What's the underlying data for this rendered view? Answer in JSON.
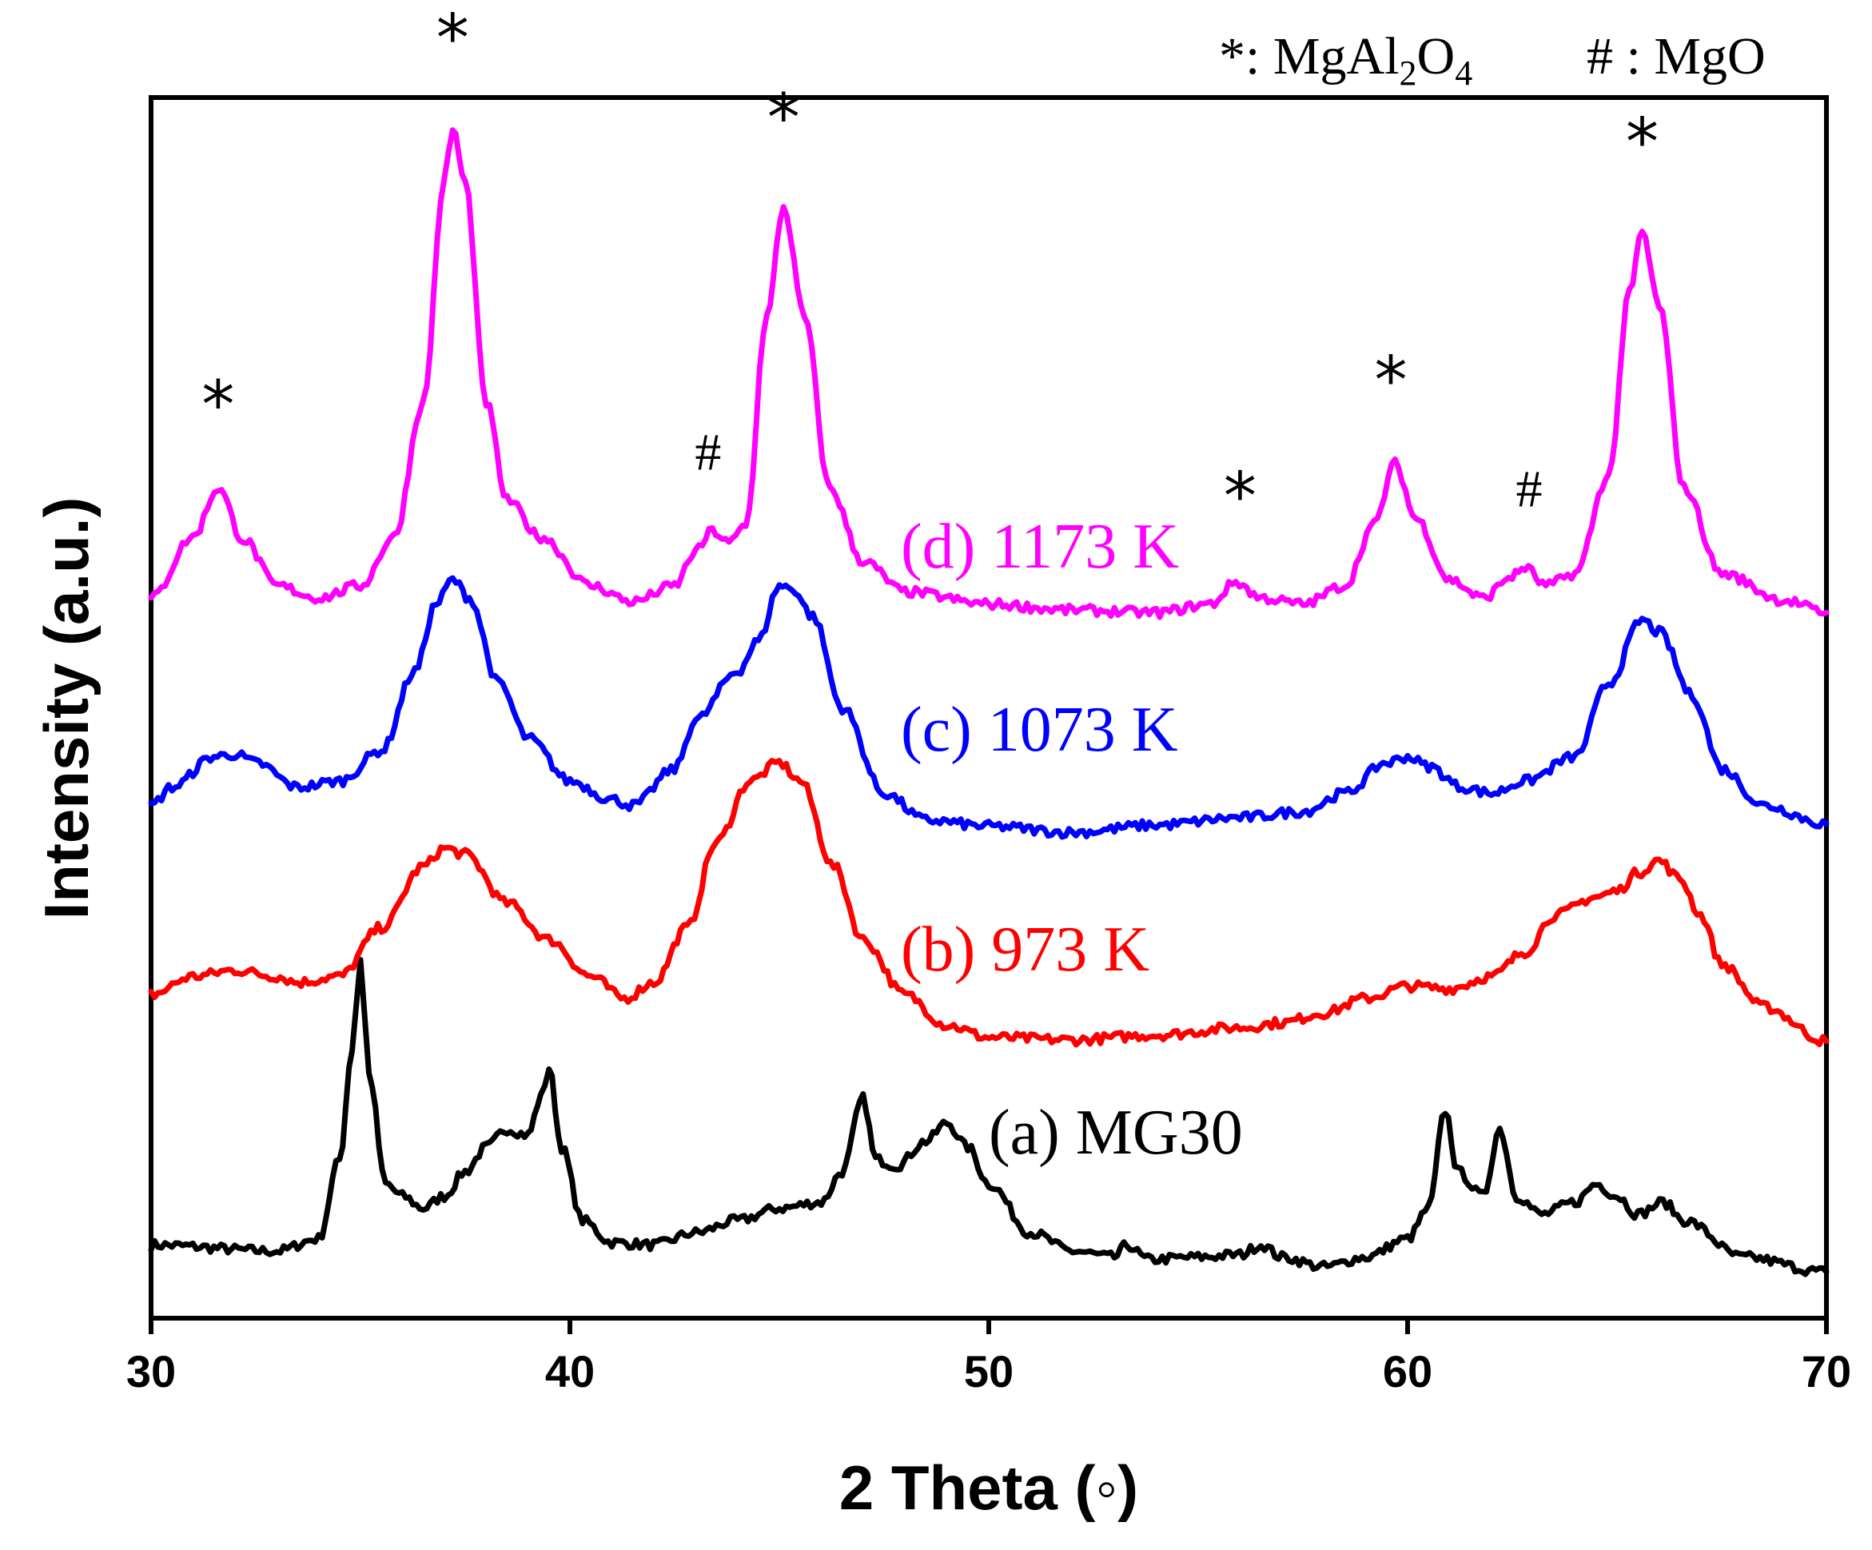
{
  "chart_data": {
    "type": "line",
    "xlabel": "2 Theta (◦)",
    "ylabel": "Intensity (a.u.)",
    "xlim": [
      30,
      70
    ],
    "ylim": [
      0,
      1
    ],
    "x_ticks": [
      "30",
      "40",
      "50",
      "60",
      "70"
    ],
    "legend": {
      "mgal2o4": {
        "symbol": "*",
        "sep": ": ",
        "formula": [
          "MgAl",
          "2",
          "O",
          "4"
        ]
      },
      "mgo": {
        "symbol": "#",
        "sep": " : ",
        "formula": "MgO"
      }
    },
    "series": [
      {
        "name": "(a) MG30",
        "color": "#000000",
        "points": [
          [
            30,
            0.06
          ],
          [
            33,
            0.055
          ],
          [
            34,
            0.065
          ],
          [
            34.5,
            0.13
          ],
          [
            34.8,
            0.22
          ],
          [
            35,
            0.295
          ],
          [
            35.2,
            0.2
          ],
          [
            35.6,
            0.11
          ],
          [
            36,
            0.1
          ],
          [
            36.5,
            0.09
          ],
          [
            37,
            0.1
          ],
          [
            37.5,
            0.12
          ],
          [
            38,
            0.14
          ],
          [
            38.5,
            0.155
          ],
          [
            39,
            0.15
          ],
          [
            39.3,
            0.18
          ],
          [
            39.5,
            0.205
          ],
          [
            39.8,
            0.14
          ],
          [
            40.3,
            0.08
          ],
          [
            41,
            0.062
          ],
          [
            42,
            0.06
          ],
          [
            43,
            0.07
          ],
          [
            44,
            0.08
          ],
          [
            45,
            0.09
          ],
          [
            46,
            0.095
          ],
          [
            46.5,
            0.12
          ],
          [
            47,
            0.18
          ],
          [
            47.3,
            0.13
          ],
          [
            47.8,
            0.125
          ],
          [
            48.5,
            0.145
          ],
          [
            49,
            0.16
          ],
          [
            49.5,
            0.14
          ],
          [
            50,
            0.11
          ],
          [
            51,
            0.07
          ],
          [
            52,
            0.055
          ],
          [
            53,
            0.05
          ],
          [
            53.3,
            0.06
          ],
          [
            53.8,
            0.048
          ],
          [
            55,
            0.05
          ],
          [
            56,
            0.052
          ],
          [
            56.5,
            0.06
          ],
          [
            57,
            0.05
          ],
          [
            58,
            0.042
          ],
          [
            59,
            0.05
          ],
          [
            60,
            0.065
          ],
          [
            60.5,
            0.09
          ],
          [
            60.9,
            0.17
          ],
          [
            61.2,
            0.12
          ],
          [
            61.8,
            0.1
          ],
          [
            62.2,
            0.155
          ],
          [
            62.6,
            0.1
          ],
          [
            63.2,
            0.085
          ],
          [
            64,
            0.095
          ],
          [
            64.5,
            0.11
          ],
          [
            65,
            0.1
          ],
          [
            65.5,
            0.085
          ],
          [
            66.1,
            0.095
          ],
          [
            66.6,
            0.08
          ],
          [
            68,
            0.05
          ],
          [
            70,
            0.038
          ]
        ]
      },
      {
        "name": "(b) 973 K",
        "color": "#ff0000",
        "points": [
          [
            30,
            0.265
          ],
          [
            31,
            0.28
          ],
          [
            32,
            0.285
          ],
          [
            33,
            0.28
          ],
          [
            33.5,
            0.275
          ],
          [
            34.5,
            0.28
          ],
          [
            35.5,
            0.32
          ],
          [
            36.5,
            0.37
          ],
          [
            37,
            0.385
          ],
          [
            37.5,
            0.38
          ],
          [
            38.5,
            0.34
          ],
          [
            39.5,
            0.31
          ],
          [
            40.5,
            0.28
          ],
          [
            41.3,
            0.262
          ],
          [
            42,
            0.275
          ],
          [
            42.8,
            0.32
          ],
          [
            43.5,
            0.39
          ],
          [
            44.3,
            0.44
          ],
          [
            45,
            0.455
          ],
          [
            45.5,
            0.44
          ],
          [
            46.3,
            0.37
          ],
          [
            47,
            0.31
          ],
          [
            48,
            0.265
          ],
          [
            49,
            0.24
          ],
          [
            50,
            0.23
          ],
          [
            52,
            0.228
          ],
          [
            54,
            0.232
          ],
          [
            56,
            0.238
          ],
          [
            57,
            0.242
          ],
          [
            58,
            0.25
          ],
          [
            59,
            0.262
          ],
          [
            60,
            0.272
          ],
          [
            61,
            0.27
          ],
          [
            62,
            0.28
          ],
          [
            62.8,
            0.3
          ],
          [
            63.5,
            0.33
          ],
          [
            64.5,
            0.345
          ],
          [
            65,
            0.35
          ],
          [
            65.5,
            0.365
          ],
          [
            66,
            0.375
          ],
          [
            66.5,
            0.36
          ],
          [
            67,
            0.33
          ],
          [
            67.5,
            0.29
          ],
          [
            68.5,
            0.255
          ],
          [
            70,
            0.227
          ]
        ]
      },
      {
        "name": "(c) 1073 K",
        "color": "#0000ff",
        "points": [
          [
            30,
            0.42
          ],
          [
            30.5,
            0.435
          ],
          [
            31.5,
            0.46
          ],
          [
            32,
            0.462
          ],
          [
            32.5,
            0.455
          ],
          [
            33.5,
            0.435
          ],
          [
            34.5,
            0.44
          ],
          [
            35.5,
            0.465
          ],
          [
            36.3,
            0.53
          ],
          [
            36.8,
            0.585
          ],
          [
            37.2,
            0.605
          ],
          [
            37.6,
            0.59
          ],
          [
            38.3,
            0.52
          ],
          [
            39,
            0.475
          ],
          [
            40,
            0.44
          ],
          [
            41,
            0.425
          ],
          [
            41.5,
            0.42
          ],
          [
            42.5,
            0.45
          ],
          [
            43,
            0.49
          ],
          [
            44,
            0.53
          ],
          [
            44.5,
            0.555
          ],
          [
            45,
            0.6
          ],
          [
            45.3,
            0.598
          ],
          [
            45.8,
            0.575
          ],
          [
            46.5,
            0.5
          ],
          [
            47.5,
            0.43
          ],
          [
            48.5,
            0.408
          ],
          [
            50,
            0.403
          ],
          [
            52,
            0.398
          ],
          [
            54,
            0.404
          ],
          [
            56,
            0.41
          ],
          [
            57.5,
            0.415
          ],
          [
            58.5,
            0.43
          ],
          [
            59.5,
            0.455
          ],
          [
            60,
            0.46
          ],
          [
            60.5,
            0.452
          ],
          [
            61.3,
            0.435
          ],
          [
            62,
            0.43
          ],
          [
            62.8,
            0.44
          ],
          [
            64,
            0.46
          ],
          [
            64.8,
            0.52
          ],
          [
            65.6,
            0.572
          ],
          [
            66,
            0.562
          ],
          [
            66.8,
            0.51
          ],
          [
            67.5,
            0.45
          ],
          [
            68.5,
            0.42
          ],
          [
            70,
            0.405
          ]
        ]
      },
      {
        "name": "(d) 1173 K",
        "color": "#ff00ff",
        "points": [
          [
            30,
            0.59
          ],
          [
            31,
            0.64
          ],
          [
            31.6,
            0.68
          ],
          [
            32.2,
            0.638
          ],
          [
            33,
            0.6
          ],
          [
            34,
            0.59
          ],
          [
            35,
            0.6
          ],
          [
            35.8,
            0.64
          ],
          [
            36.5,
            0.75
          ],
          [
            37,
            0.93
          ],
          [
            37.2,
            0.975
          ],
          [
            37.5,
            0.93
          ],
          [
            38,
            0.75
          ],
          [
            38.5,
            0.67
          ],
          [
            39.3,
            0.64
          ],
          [
            40.5,
            0.6
          ],
          [
            41.5,
            0.587
          ],
          [
            42.5,
            0.6
          ],
          [
            43,
            0.628
          ],
          [
            43.4,
            0.645
          ],
          [
            43.8,
            0.635
          ],
          [
            44.2,
            0.65
          ],
          [
            44.7,
            0.82
          ],
          [
            45.1,
            0.91
          ],
          [
            45.6,
            0.82
          ],
          [
            46.2,
            0.68
          ],
          [
            47,
            0.62
          ],
          [
            48,
            0.595
          ],
          [
            50,
            0.585
          ],
          [
            52,
            0.58
          ],
          [
            54,
            0.578
          ],
          [
            55.3,
            0.585
          ],
          [
            55.9,
            0.603
          ],
          [
            56.5,
            0.59
          ],
          [
            57.5,
            0.585
          ],
          [
            58.5,
            0.6
          ],
          [
            59.2,
            0.65
          ],
          [
            59.7,
            0.7
          ],
          [
            60.2,
            0.655
          ],
          [
            61,
            0.605
          ],
          [
            61.8,
            0.59
          ],
          [
            62.5,
            0.608
          ],
          [
            62.8,
            0.615
          ],
          [
            63.3,
            0.6
          ],
          [
            64,
            0.61
          ],
          [
            64.8,
            0.69
          ],
          [
            65.3,
            0.84
          ],
          [
            65.6,
            0.89
          ],
          [
            66,
            0.83
          ],
          [
            66.6,
            0.68
          ],
          [
            67.5,
            0.61
          ],
          [
            69,
            0.588
          ],
          [
            70,
            0.578
          ]
        ]
      }
    ],
    "peak_markers": [
      {
        "symbol": "*",
        "x": 31.6,
        "y": 0.73
      },
      {
        "symbol": "*",
        "x": 37.2,
        "y": 1.03
      },
      {
        "symbol": "*",
        "x": 45.1,
        "y": 0.965
      },
      {
        "symbol": "*",
        "x": 56.0,
        "y": 0.655
      },
      {
        "symbol": "*",
        "x": 59.6,
        "y": 0.75
      },
      {
        "symbol": "*",
        "x": 65.6,
        "y": 0.945
      },
      {
        "symbol": "#",
        "x": 43.3,
        "y": 0.695
      },
      {
        "symbol": "#",
        "x": 62.9,
        "y": 0.665
      }
    ],
    "series_label_positions": [
      {
        "x": 50.0,
        "y": 0.135
      },
      {
        "x": 47.9,
        "y": 0.285
      },
      {
        "x": 47.9,
        "y": 0.465
      },
      {
        "x": 47.9,
        "y": 0.615
      }
    ]
  }
}
